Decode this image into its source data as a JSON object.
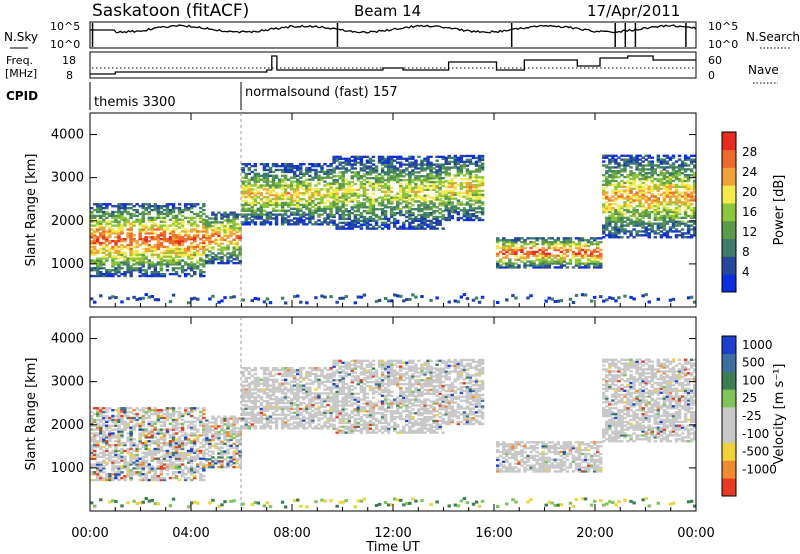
{
  "header": {
    "station": "Saskatoon (fitACF)",
    "beam": "Beam 14",
    "date": "17/Apr/2011"
  },
  "noise_panel": {
    "left_label": "N.Sky",
    "right_label": "N.Search",
    "left_ticks": [
      "10^5",
      "10^0"
    ],
    "right_ticks": [
      "10^5",
      "10^0"
    ]
  },
  "freq_panel": {
    "left_label_line1": "Freq.",
    "left_label_line2": "[MHz]",
    "right_label": "Nave",
    "left_ticks": [
      "18",
      "8"
    ],
    "right_ticks": [
      "60",
      "0"
    ]
  },
  "cpid_panel": {
    "label": "CPID",
    "programs": [
      {
        "name": "themis 3300",
        "start_hour": 0
      },
      {
        "name": "normalsound (fast) 157",
        "start_hour": 6
      }
    ]
  },
  "x_axis": {
    "label": "Time UT",
    "ticks": [
      "00:00",
      "04:00",
      "08:00",
      "12:00",
      "16:00",
      "20:00",
      "00:00"
    ]
  },
  "power_panel": {
    "ylabel": "Slant Range [km]",
    "yticks": [
      "4000",
      "3000",
      "2000",
      "1000"
    ],
    "colorbar_label": "Power [dB]",
    "colorbar_ticks": [
      "28",
      "24",
      "20",
      "16",
      "12",
      "8",
      "4"
    ],
    "colors": [
      "#0b2fe0",
      "#26479c",
      "#3d7d6a",
      "#5a9a4a",
      "#8ec63a",
      "#f5e94b",
      "#f0a33a",
      "#ee6a2a",
      "#e62b1f"
    ]
  },
  "velocity_panel": {
    "ylabel": "Slant Range [km]",
    "yticks": [
      "4000",
      "3000",
      "2000",
      "1000"
    ],
    "colorbar_label": "Velocity [m s⁻¹]",
    "colorbar_ticks": [
      "1000",
      "500",
      "100",
      "25",
      "-25",
      "-100",
      "-500",
      "-1000"
    ],
    "colors": [
      "#1d3fcf",
      "#3b6fa0",
      "#3c7e54",
      "#7ec45a",
      "#c8c8c8",
      "#c8c8c8",
      "#f0d23a",
      "#f08a30",
      "#e63a22"
    ]
  },
  "chart_data": {
    "type": "heatmap",
    "x": {
      "label": "Time UT",
      "range_hours": [
        0,
        24
      ]
    },
    "y": {
      "label": "Slant Range [km]",
      "range_km": [
        0,
        4500
      ]
    },
    "series": [
      {
        "name": "Power [dB]",
        "colorbar_range": [
          0,
          30
        ]
      },
      {
        "name": "Velocity [m s⁻¹]",
        "colorbar_range": [
          -1000,
          1000
        ]
      }
    ],
    "echo_regions_approx": [
      {
        "t_start": 0,
        "t_end": 4.5,
        "range_low_km": 700,
        "range_high_km": 2400,
        "power_peak_db": 26
      },
      {
        "t_start": 4.5,
        "t_end": 6.0,
        "range_low_km": 1000,
        "range_high_km": 2200,
        "power_peak_db": 24
      },
      {
        "t_start": 6.0,
        "t_end": 9.5,
        "range_low_km": 1900,
        "range_high_km": 3300,
        "power_peak_db": 20
      },
      {
        "t_start": 9.5,
        "t_end": 14.0,
        "range_low_km": 1800,
        "range_high_km": 3500,
        "power_peak_db": 18
      },
      {
        "t_start": 14.0,
        "t_end": 15.5,
        "range_low_km": 2000,
        "range_high_km": 3500,
        "power_peak_db": 20
      },
      {
        "t_start": 16.0,
        "t_end": 20.2,
        "range_low_km": 900,
        "range_high_km": 1600,
        "power_peak_db": 28
      },
      {
        "t_start": 20.2,
        "t_end": 24.0,
        "range_low_km": 1600,
        "range_high_km": 3500,
        "power_peak_db": 22
      }
    ]
  }
}
